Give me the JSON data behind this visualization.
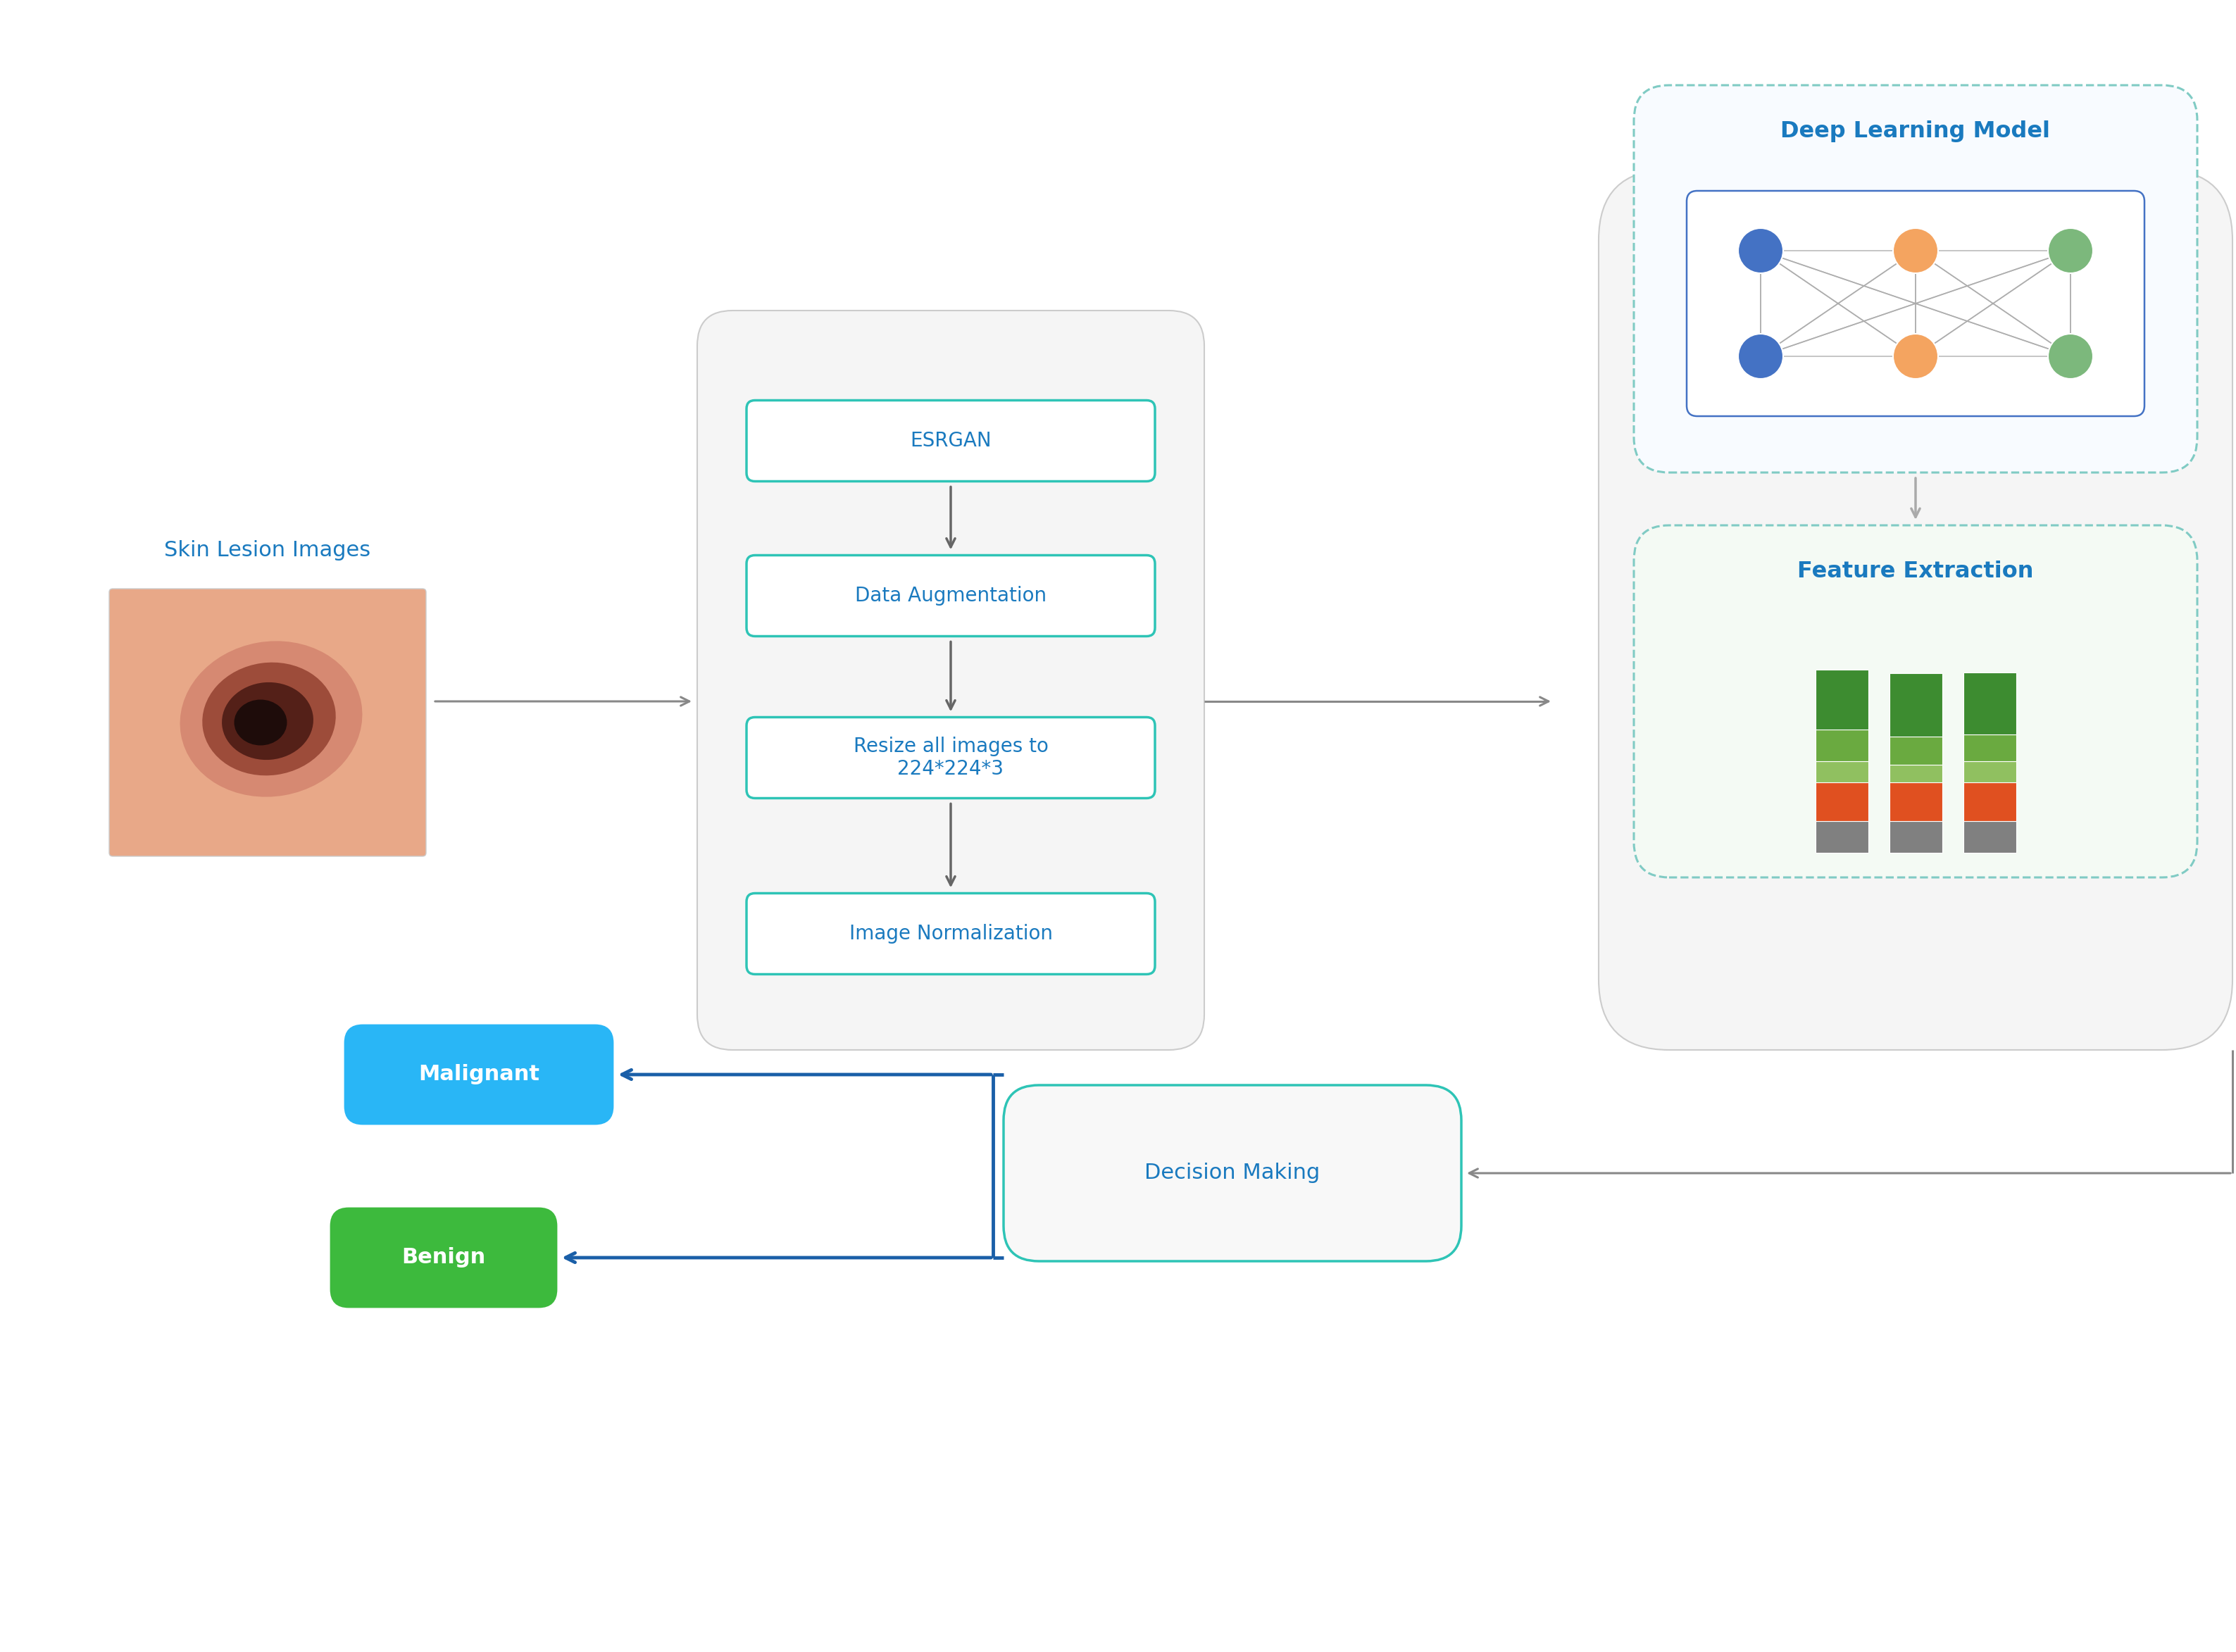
{
  "bg_color": "#ffffff",
  "title_color": "#1a7abf",
  "process_box_color": "#ffffff",
  "process_box_edge": "#2ec4b6",
  "process_text_color": "#1a7abf",
  "arrow_color_dark": "#666666",
  "arrow_color_blue": "#1a5fa8",
  "skin_lesion_label": "Skin Lesion Images",
  "process_steps": [
    "ESRGAN",
    "Data Augmentation",
    "Resize all images to\n224*224*3",
    "Image Normalization"
  ],
  "dl_model_label": "Deep Learning Model",
  "feature_label": "Feature Extraction",
  "decision_label": "Decision Making",
  "malignant_label": "Malignant",
  "benign_label": "Benign",
  "malignant_color": "#29b6f6",
  "benign_color": "#3dba3d",
  "inner_dashed_color": "#80cbc4",
  "node_blue": "#4472c4",
  "node_orange": "#f4a460",
  "node_green": "#7cb87c",
  "bar_colors_top_to_bottom": [
    "#4caf50",
    "#4caf50",
    "#8bc34a",
    "#ff5722",
    "#808080"
  ],
  "process_main_box_face": "#f5f5f5",
  "process_main_box_edge": "#cccccc",
  "right_outer_face": "#f5f5f5",
  "right_outer_edge": "#cccccc"
}
